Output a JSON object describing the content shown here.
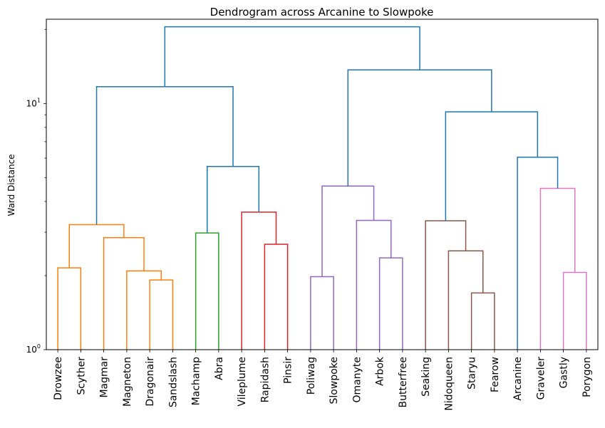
{
  "chart_data": {
    "type": "dendrogram",
    "title": "Dendrogram across Arcanine to Slowpoke",
    "xlabel": "",
    "ylabel": "Ward Distance",
    "yscale": "log",
    "ylim": [
      1,
      22
    ],
    "yticks": [
      {
        "value": 1,
        "base": "10",
        "exp": "0"
      },
      {
        "value": 10,
        "base": "10",
        "exp": "1"
      }
    ],
    "leaves": [
      "Drowzee",
      "Scyther",
      "Magmar",
      "Magneton",
      "Dragonair",
      "Sandslash",
      "Machamp",
      "Abra",
      "Vileplume",
      "Rapidash",
      "Pinsir",
      "Poliwag",
      "Slowpoke",
      "Omanyte",
      "Arbok",
      "Butterfree",
      "Seaking",
      "Nidoqueen",
      "Staryu",
      "Fearow",
      "Arcanine",
      "Graveler",
      "Gastly",
      "Porygon"
    ],
    "colors": {
      "above": "#1f77b4",
      "c1": "#ff7f0e",
      "c2": "#2ca02c",
      "c3": "#d62728",
      "c4": "#9467bd",
      "c5": "#8c564b",
      "c6": "#e377c2"
    },
    "merges": [
      {
        "left": "Drowzee",
        "right": "Scyther",
        "height": 2.15,
        "color": "c1"
      },
      {
        "left": "Dragonair",
        "right": "Sandslash",
        "height": 1.92,
        "color": "c1"
      },
      {
        "left": "Magneton",
        "right": "m2",
        "height": 2.09,
        "color": "c1"
      },
      {
        "left": "Magmar",
        "right": "m3",
        "height": 2.85,
        "color": "c1"
      },
      {
        "left": "m1",
        "right": "m4",
        "height": 3.22,
        "color": "c1"
      },
      {
        "left": "Machamp",
        "right": "Abra",
        "height": 2.98,
        "color": "c2"
      },
      {
        "left": "Rapidash",
        "right": "Pinsir",
        "height": 2.68,
        "color": "c3"
      },
      {
        "left": "Vileplume",
        "right": "m7",
        "height": 3.62,
        "color": "c3"
      },
      {
        "left": "m6",
        "right": "m8",
        "height": 5.55,
        "color": "above"
      },
      {
        "left": "m5",
        "right": "m9",
        "height": 11.7,
        "color": "above"
      },
      {
        "left": "Poliwag",
        "right": "Slowpoke",
        "height": 1.98,
        "color": "c4"
      },
      {
        "left": "Arbok",
        "right": "Butterfree",
        "height": 2.36,
        "color": "c4"
      },
      {
        "left": "Omanyte",
        "right": "m12",
        "height": 3.35,
        "color": "c4"
      },
      {
        "left": "m11",
        "right": "m13",
        "height": 4.62,
        "color": "c4"
      },
      {
        "left": "Staryu",
        "right": "Fearow",
        "height": 1.7,
        "color": "c5"
      },
      {
        "left": "Nidoqueen",
        "right": "m15",
        "height": 2.52,
        "color": "c5"
      },
      {
        "left": "Seaking",
        "right": "m16",
        "height": 3.34,
        "color": "c5"
      },
      {
        "left": "Gastly",
        "right": "Porygon",
        "height": 2.06,
        "color": "c6"
      },
      {
        "left": "Graveler",
        "right": "m18",
        "height": 4.52,
        "color": "c6"
      },
      {
        "left": "Arcanine",
        "right": "m19",
        "height": 6.05,
        "color": "above"
      },
      {
        "left": "m17",
        "right": "m20",
        "height": 9.25,
        "color": "above"
      },
      {
        "left": "m14",
        "right": "m21",
        "height": 13.7,
        "color": "above"
      },
      {
        "left": "m10",
        "right": "m22",
        "height": 20.5,
        "color": "above"
      }
    ]
  }
}
